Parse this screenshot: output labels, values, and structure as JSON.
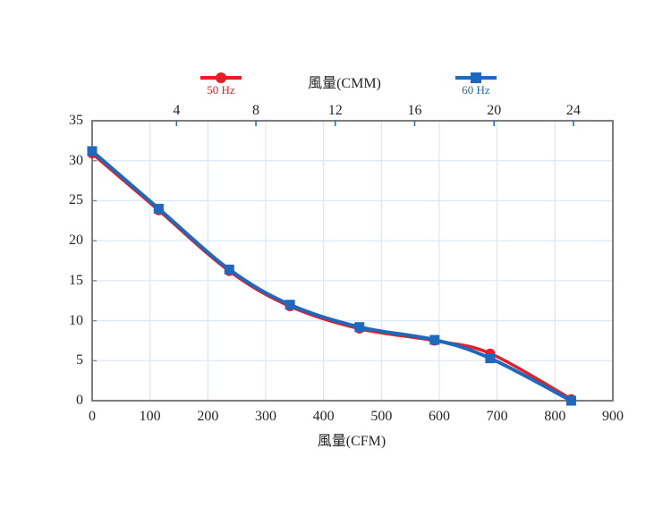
{
  "page": {
    "background": "#ffffff"
  },
  "legend": {
    "items": [
      {
        "label": "50 Hz",
        "color": "#ec1b23",
        "marker": "circle"
      },
      {
        "label": "60 Hz",
        "color": "#1c69be",
        "marker": "square"
      }
    ]
  },
  "chart_data": {
    "type": "line",
    "title": "",
    "grid": true,
    "colors": {
      "gridline": "#dbe8f6",
      "frame": "#7d7d7d",
      "tick_text": "#262626",
      "top_tick": "#1c69be",
      "left_tick": "#808080"
    },
    "top_axis": {
      "label": "風量(CMM)",
      "ticks": [
        4,
        8,
        12,
        16,
        20,
        24
      ]
    },
    "x_axis": {
      "label": "風量(CFM)",
      "range": [
        0,
        900
      ],
      "ticks": [
        0,
        100,
        200,
        300,
        400,
        500,
        600,
        700,
        800,
        900
      ]
    },
    "y_axis": {
      "label": "",
      "range": [
        0,
        35
      ],
      "ticks": [
        0,
        5,
        10,
        15,
        20,
        25,
        30,
        35
      ]
    },
    "series": [
      {
        "name": "50 Hz",
        "color": "#ec1b23",
        "marker": "circle",
        "points": [
          [
            0,
            30.9
          ],
          [
            115,
            23.8
          ],
          [
            237,
            16.2
          ],
          [
            342,
            11.8
          ],
          [
            462,
            9.0
          ],
          [
            592,
            7.5
          ],
          [
            688,
            5.9
          ],
          [
            828,
            0.2
          ]
        ]
      },
      {
        "name": "60 Hz",
        "color": "#1c69be",
        "marker": "square",
        "points": [
          [
            0,
            31.2
          ],
          [
            115,
            24.0
          ],
          [
            237,
            16.4
          ],
          [
            342,
            12.0
          ],
          [
            462,
            9.2
          ],
          [
            592,
            7.6
          ],
          [
            688,
            5.3
          ],
          [
            828,
            0.0
          ]
        ]
      }
    ]
  }
}
